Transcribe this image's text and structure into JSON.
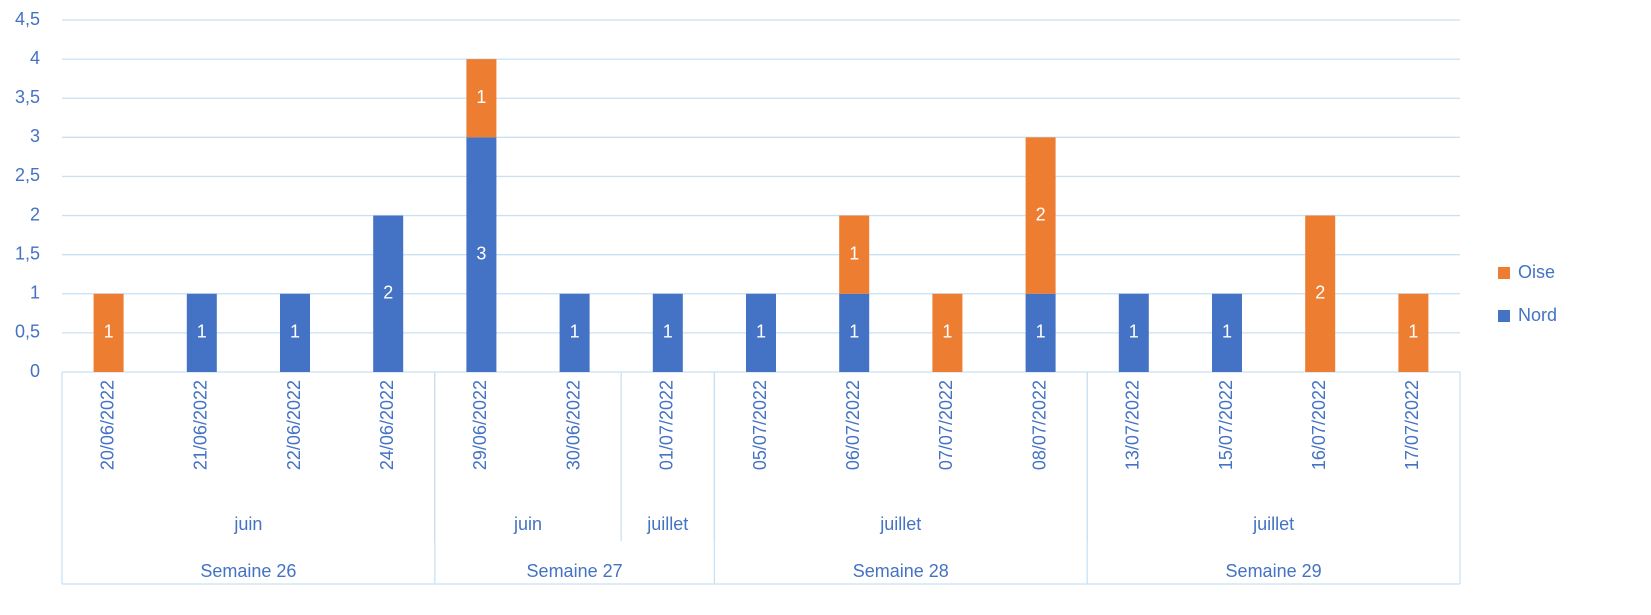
{
  "chart_data": {
    "type": "bar",
    "stacked": true,
    "categories": [
      "20/06/2022",
      "21/06/2022",
      "22/06/2022",
      "24/06/2022",
      "29/06/2022",
      "30/06/2022",
      "01/07/2022",
      "05/07/2022",
      "06/07/2022",
      "07/07/2022",
      "08/07/2022",
      "13/07/2022",
      "15/07/2022",
      "16/07/2022",
      "17/07/2022"
    ],
    "months": [
      "juin",
      "juin",
      "juin",
      "juin",
      "juin",
      "juin",
      "juillet",
      "juillet",
      "juillet",
      "juillet",
      "juillet",
      "juillet",
      "juillet",
      "juillet",
      "juillet"
    ],
    "weeks": [
      "Semaine 26",
      "Semaine 26",
      "Semaine 26",
      "Semaine 26",
      "Semaine 27",
      "Semaine 27",
      "Semaine 27",
      "Semaine 28",
      "Semaine 28",
      "Semaine 28",
      "Semaine 28",
      "Semaine 29",
      "Semaine 29",
      "Semaine 29",
      "Semaine 29"
    ],
    "series": [
      {
        "name": "Nord",
        "color": "#4472c4",
        "values": [
          null,
          1,
          1,
          2,
          3,
          1,
          1,
          1,
          1,
          null,
          1,
          1,
          1,
          null,
          null
        ]
      },
      {
        "name": "Oise",
        "color": "#ed7d31",
        "values": [
          1,
          null,
          null,
          null,
          1,
          null,
          null,
          null,
          1,
          1,
          2,
          null,
          null,
          2,
          1
        ]
      }
    ],
    "ylim": [
      0,
      4.5
    ],
    "yticks": [
      0,
      {
        "value": 0.5,
        "label": "0,5"
      },
      1,
      {
        "value": 1.5,
        "label": "1,5"
      },
      2,
      {
        "value": 2.5,
        "label": "2,5"
      },
      3,
      {
        "value": 3.5,
        "label": "3,5"
      },
      4,
      {
        "value": 4.5,
        "label": "4,5"
      }
    ],
    "grid": true,
    "legend": "right"
  }
}
